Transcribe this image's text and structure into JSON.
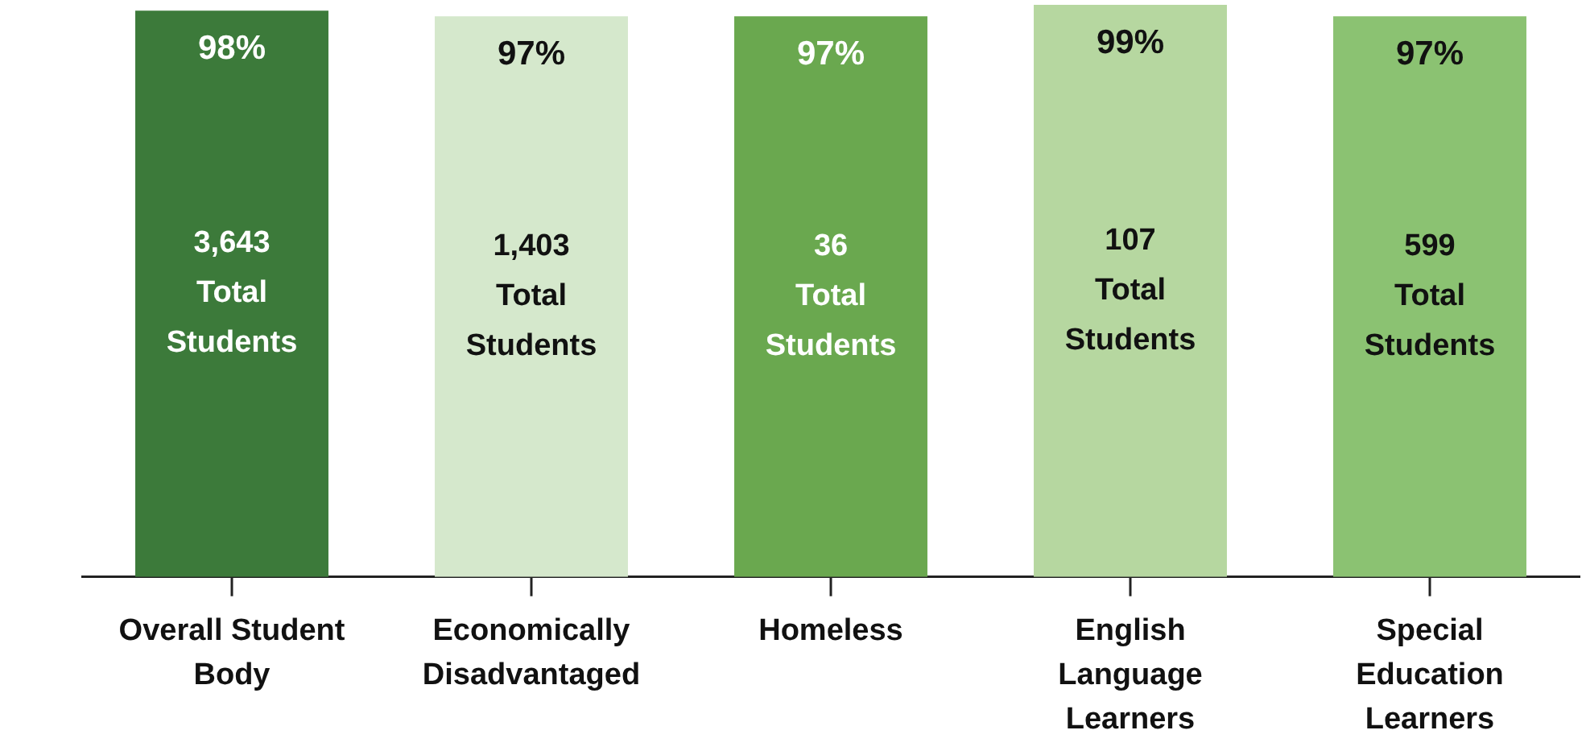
{
  "chart_data": {
    "type": "bar",
    "categories": [
      "Overall Student Body",
      "Economically Disadvantaged",
      "Homeless",
      "English Language Learners",
      "Special Education Learners"
    ],
    "values": [
      98,
      97,
      97,
      99,
      97
    ],
    "colors": [
      "#3c7a3a",
      "#d5e8cc",
      "#6aa84f",
      "#b6d7a0",
      "#8bc272"
    ],
    "value_labels": [
      "98%",
      "97%",
      "97%",
      "99%",
      "97%"
    ],
    "annotations": [
      "3,643 Total Students",
      "1,403 Total Students",
      "36 Total Students",
      "107 Total Students",
      "599 Total Students"
    ],
    "grid": false,
    "legend": false
  }
}
